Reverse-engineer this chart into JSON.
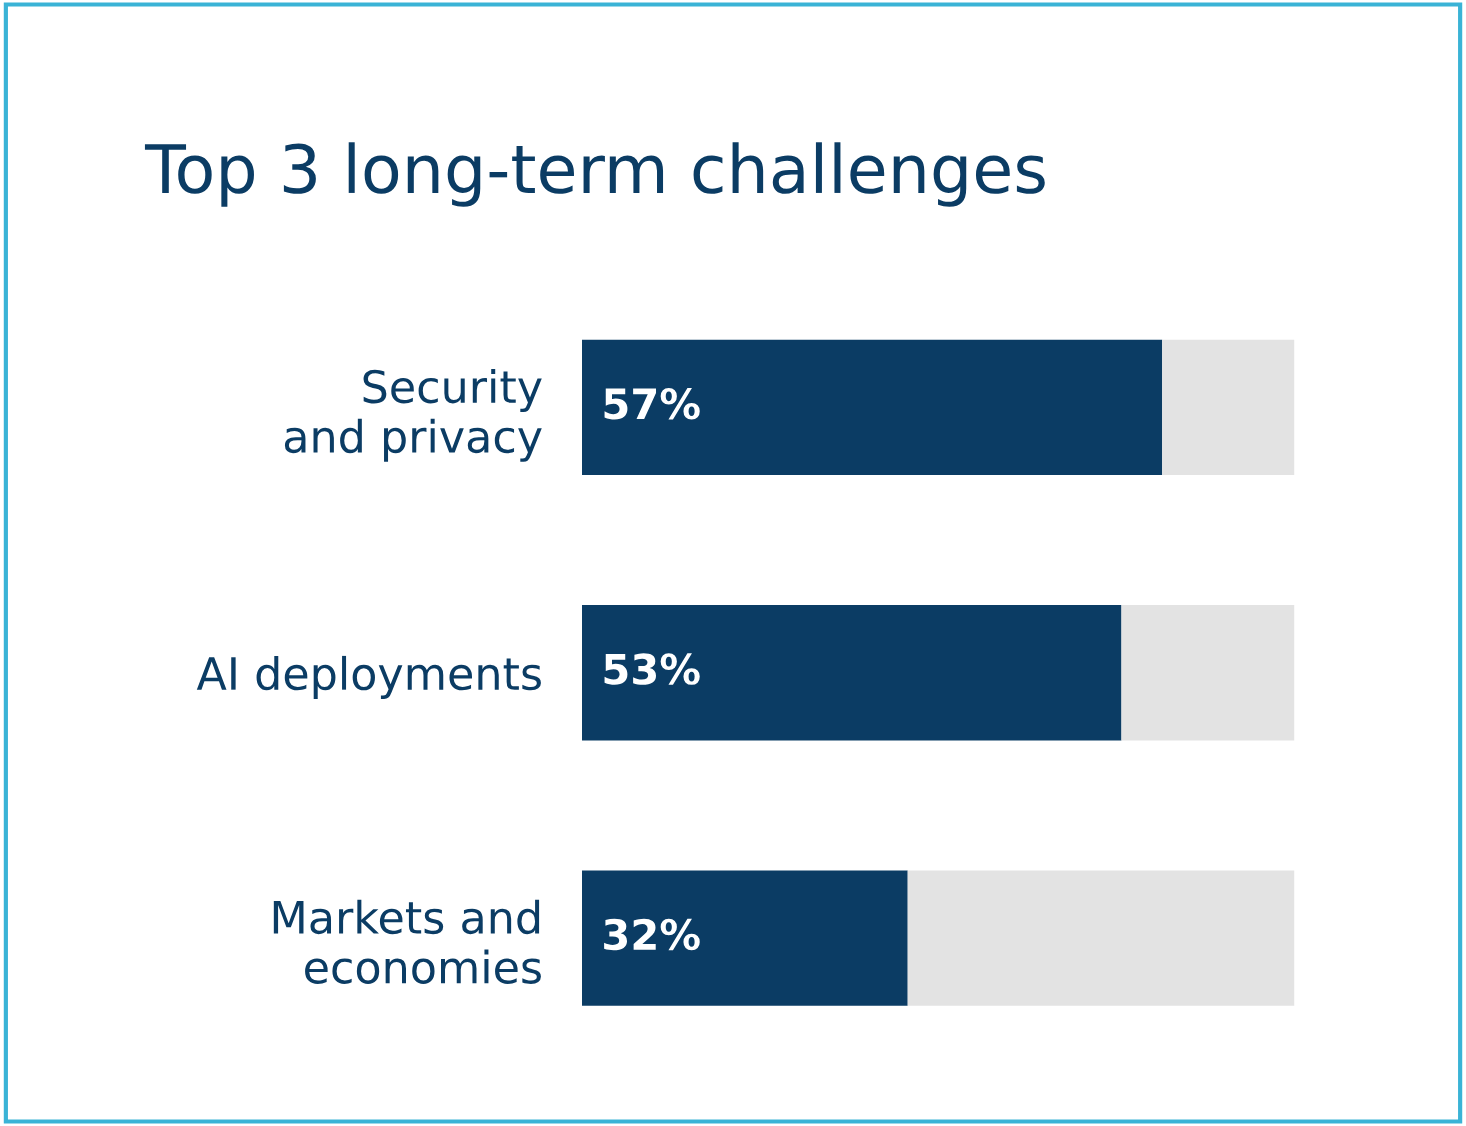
{
  "chart_data": {
    "type": "bar",
    "orientation": "horizontal",
    "stacked": true,
    "title": "Top 3 long-term challenges",
    "categories": [
      "Security\nand privacy",
      "AI deployments",
      "Markets and\neconomies"
    ],
    "series": [
      {
        "color": "#0b3c64",
        "values": [
          57,
          53,
          32
        ],
        "value_labels": [
          "57%",
          "53%",
          "32%"
        ]
      },
      {
        "color": "#e3e3e3",
        "values": [
          13,
          17,
          38
        ]
      }
    ],
    "xlim": [
      0,
      70
    ],
    "tick_labels": "y",
    "grid": false,
    "legend": false
  }
}
